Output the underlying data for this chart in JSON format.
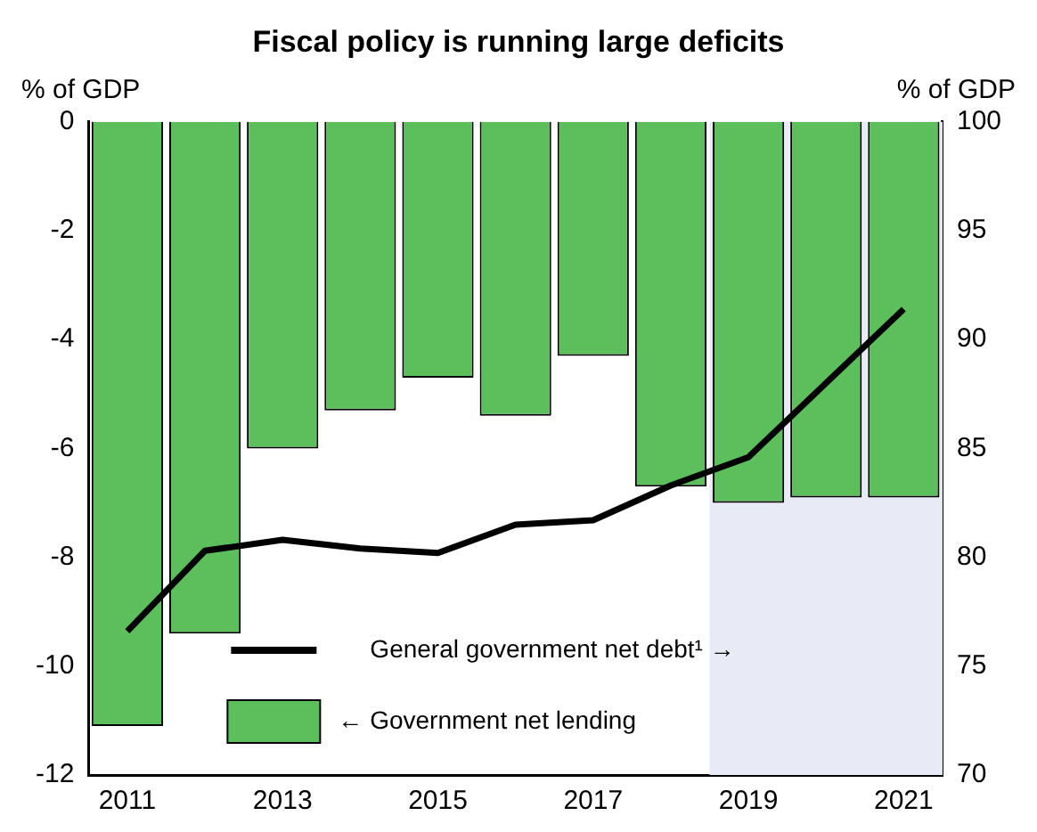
{
  "chart_data": {
    "type": "bar",
    "title": "Fiscal policy is running large deficits",
    "ylabel": "% of GDP",
    "y2label": "% of GDP",
    "categories": [
      "2011",
      null,
      "2013",
      null,
      "2015",
      null,
      "2017",
      null,
      "2019",
      null,
      "2021"
    ],
    "series": [
      {
        "name": "General government net debt¹ →",
        "type": "line",
        "axis": "y2",
        "color": "#000000",
        "values": [
          76.6,
          80.3,
          80.8,
          80.4,
          80.2,
          81.5,
          81.7,
          83.3,
          84.6,
          88.0,
          91.4
        ]
      },
      {
        "name": "← Government net lending",
        "color": "#5cbf5c",
        "values": [
          -11.1,
          -9.4,
          -6.0,
          -5.3,
          -4.7,
          -5.4,
          -4.3,
          -6.7,
          -7.0,
          -6.9,
          -6.9
        ]
      }
    ],
    "ylim": [
      -12,
      0
    ],
    "yticks": [
      0,
      -2,
      -4,
      -6,
      -8,
      -10,
      -12
    ],
    "y2lim": [
      70,
      100
    ],
    "y2ticks": [
      100,
      95,
      90,
      85,
      80,
      75,
      70
    ],
    "bands": [
      {
        "axis": "x",
        "from": "2019",
        "to": "2021",
        "color": "#e8eaf5"
      }
    ],
    "legend": "bottom",
    "grid": false,
    "marker": "none",
    "line_style": "solid"
  }
}
